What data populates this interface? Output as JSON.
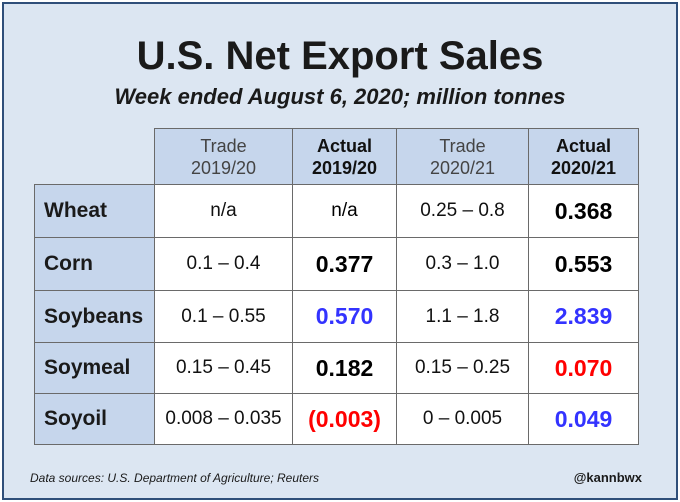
{
  "title": "U.S. Net Export Sales",
  "subtitle": "Week ended August 6, 2020; million tonnes",
  "columns": [
    {
      "line1": "Trade",
      "line2": "2019/20",
      "bold": false
    },
    {
      "line1": "Actual",
      "line2": "2019/20",
      "bold": true
    },
    {
      "line1": "Trade",
      "line2": "2020/21",
      "bold": false
    },
    {
      "line1": "Actual",
      "line2": "2020/21",
      "bold": true
    }
  ],
  "rows": [
    {
      "label": "Wheat",
      "trade_1920": "n/a",
      "actual_1920": "n/a",
      "actual_1920_color": "black",
      "trade_2021": "0.25 – 0.8",
      "actual_2021": "0.368",
      "actual_2021_color": "black"
    },
    {
      "label": "Corn",
      "trade_1920": "0.1 – 0.4",
      "actual_1920": "0.377",
      "actual_1920_color": "black",
      "trade_2021": "0.3 – 1.0",
      "actual_2021": "0.553",
      "actual_2021_color": "black"
    },
    {
      "label": "Soybeans",
      "trade_1920": "0.1 – 0.55",
      "actual_1920": "0.570",
      "actual_1920_color": "blue",
      "trade_2021": "1.1 – 1.8",
      "actual_2021": "2.839",
      "actual_2021_color": "blue"
    },
    {
      "label": "Soymeal",
      "trade_1920": "0.15 – 0.45",
      "actual_1920": "0.182",
      "actual_1920_color": "black",
      "trade_2021": "0.15 – 0.25",
      "actual_2021": "0.070",
      "actual_2021_color": "red"
    },
    {
      "label": "Soyoil",
      "trade_1920": "0.008 – 0.035",
      "actual_1920": "(0.003)",
      "actual_1920_color": "red",
      "trade_2021": "0 – 0.005",
      "actual_2021": "0.049",
      "actual_2021_color": "blue"
    }
  ],
  "footer": {
    "sources": "Data sources: U.S. Department of Agriculture; Reuters",
    "handle": "@kannbwx"
  },
  "colors": {
    "background": "#dce6f2",
    "header_fill": "#c6d6ec",
    "blue": "#3333ff",
    "red": "#ff0000",
    "black": "#000000"
  }
}
